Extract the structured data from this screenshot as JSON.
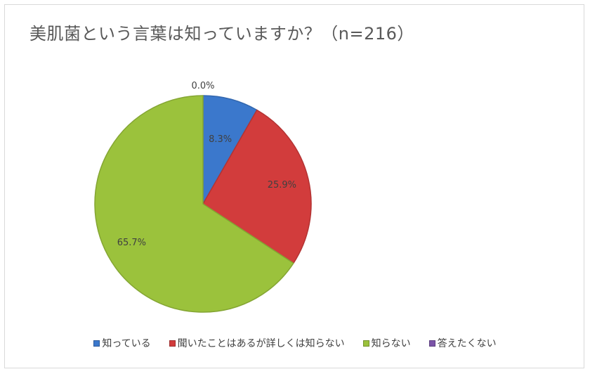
{
  "chart_data": {
    "type": "pie",
    "title": "美肌菌という言葉は知っていますか？（n=216）",
    "categories": [
      "知っている",
      "聞いたことはあるが詳しくは知らない",
      "知らない",
      "答えたくない"
    ],
    "values": [
      8.3,
      25.9,
      65.7,
      0.0
    ],
    "labels": [
      "8.3%",
      "25.9%",
      "65.7%",
      "0.0%"
    ],
    "colors": [
      "#3b78cc",
      "#d23c3c",
      "#9bc23c",
      "#7b54a8"
    ],
    "legend_position": "bottom"
  }
}
